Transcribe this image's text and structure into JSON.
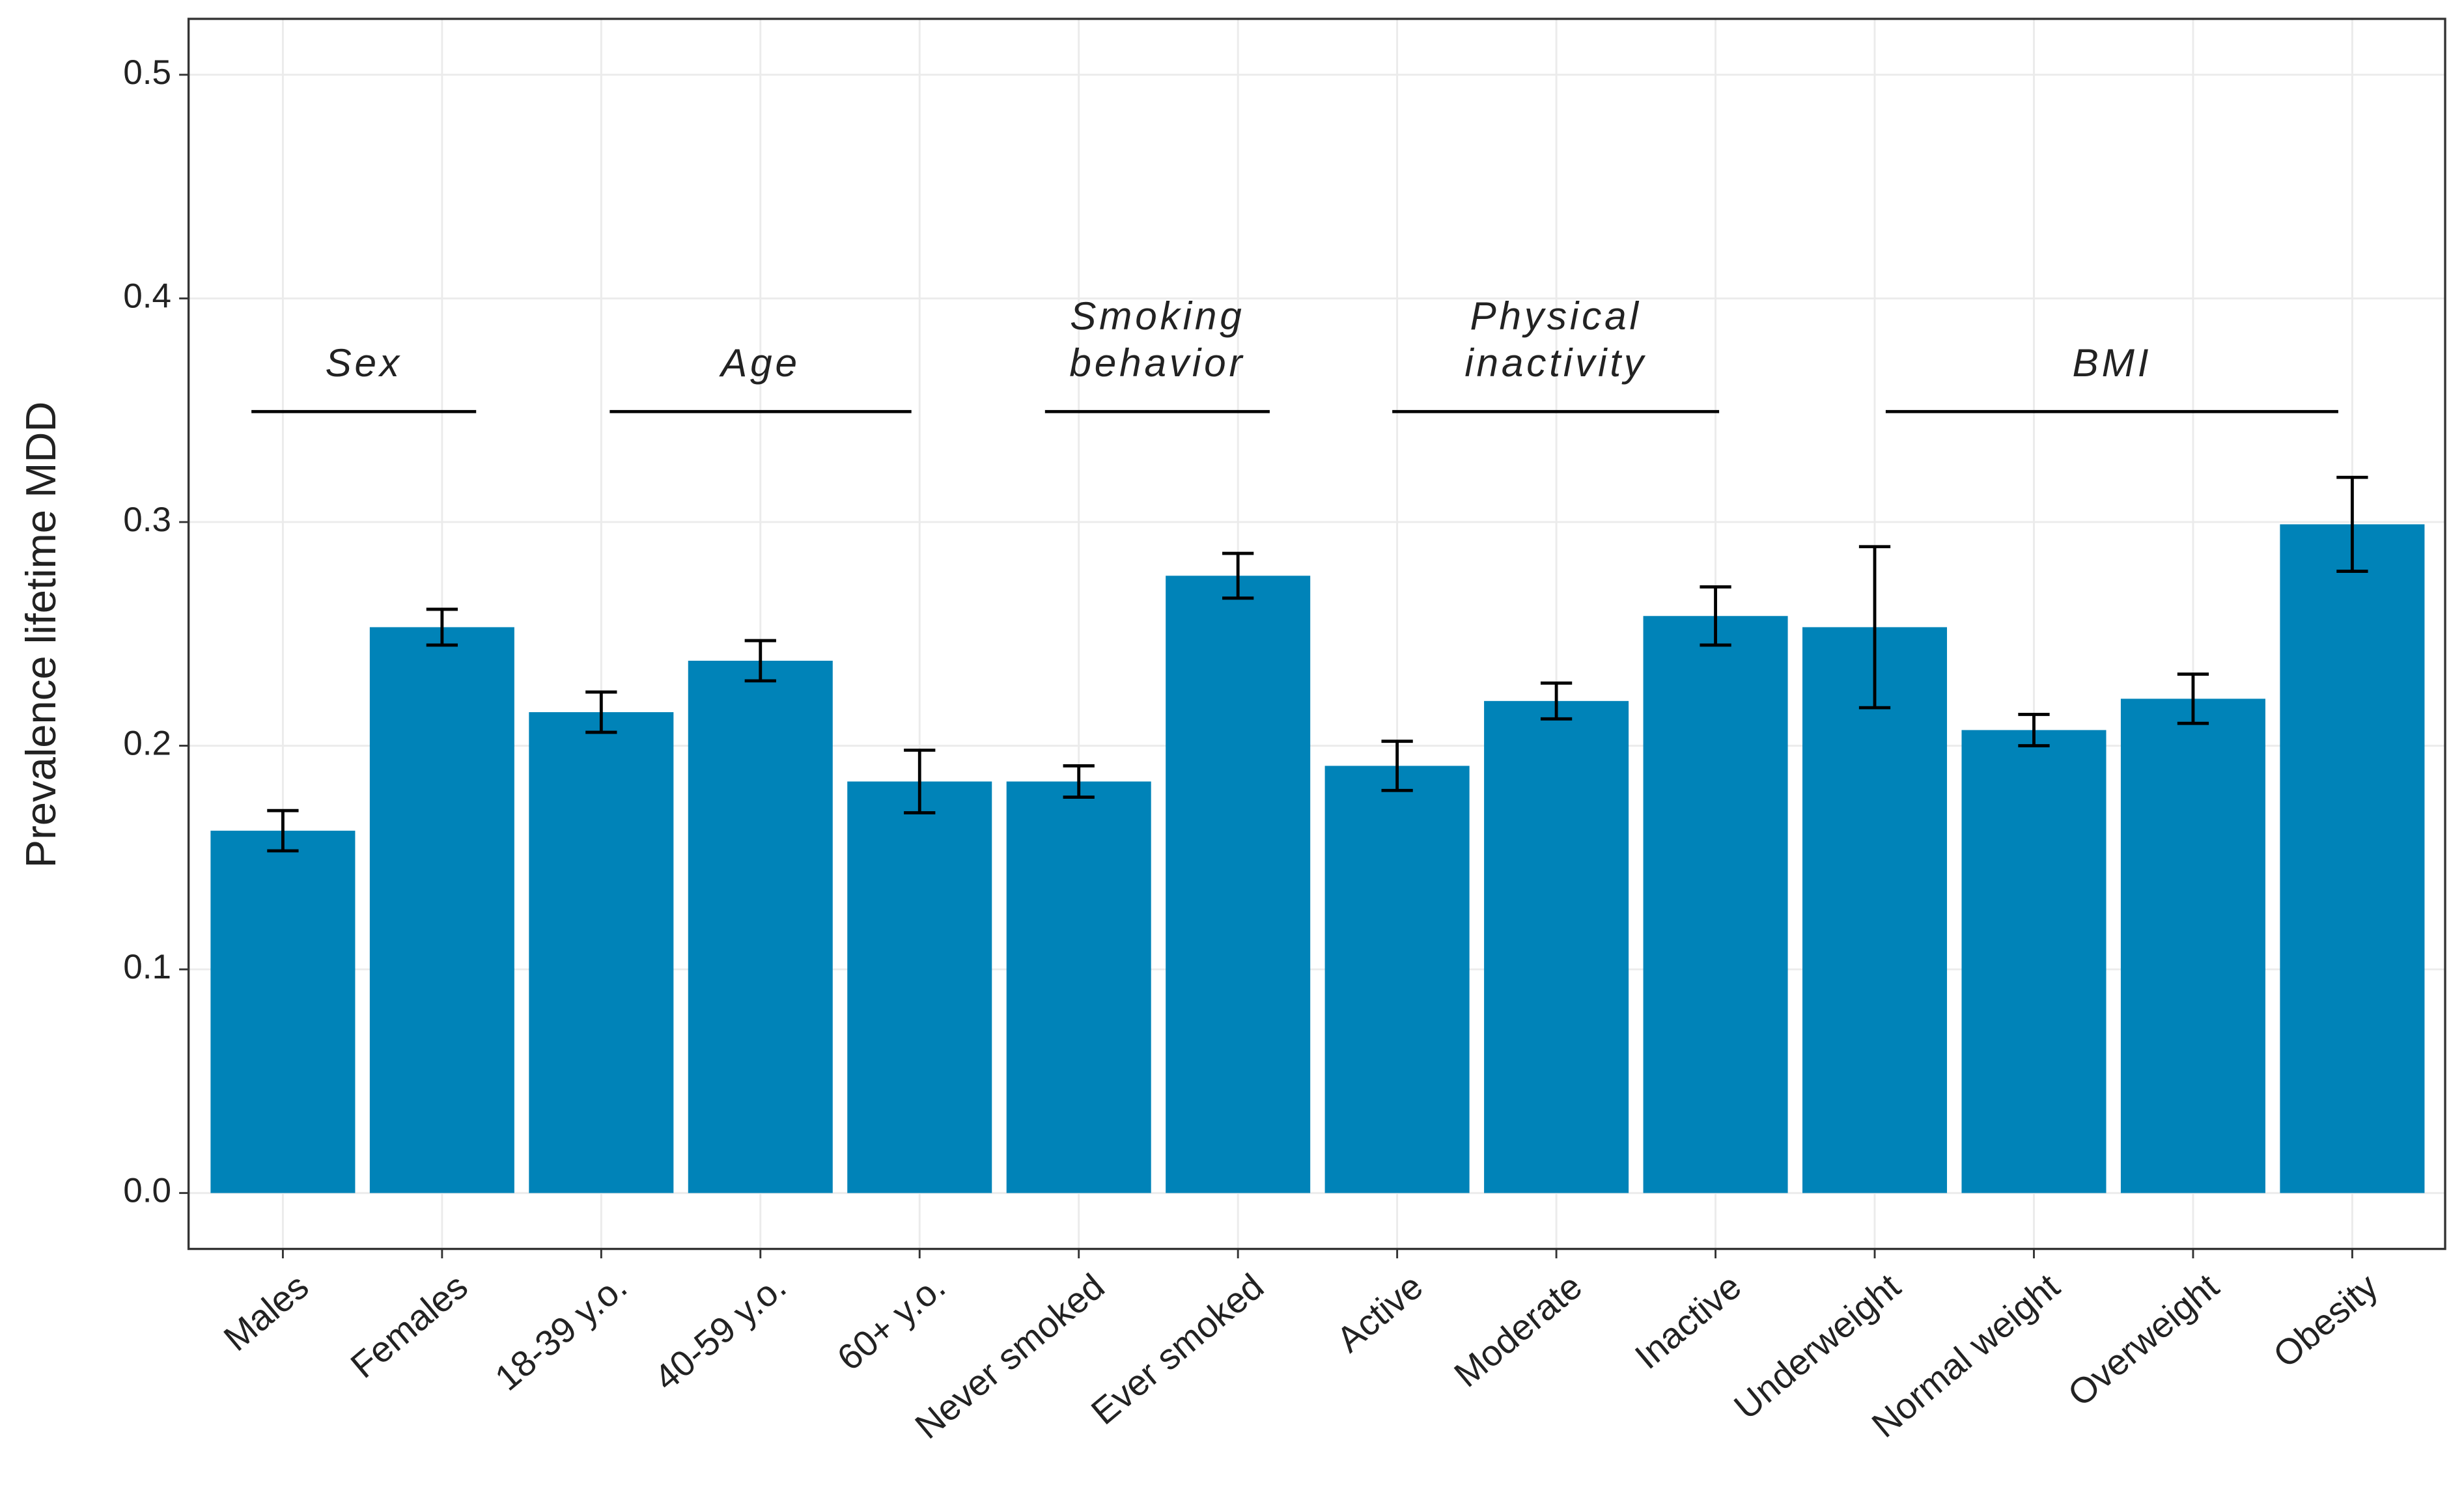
{
  "chart_data": {
    "type": "bar",
    "y_label": "Prevalence lifetime MDD",
    "categories": [
      "Males",
      "Females",
      "18-39 y.o.",
      "40-59 y.o.",
      "60+ y.o.",
      "Never smoked",
      "Ever smoked",
      "Active",
      "Moderate",
      "Inactive",
      "Underweight",
      "Normal weight",
      "Overweight",
      "Obesity"
    ],
    "values": [
      0.162,
      0.253,
      0.215,
      0.238,
      0.184,
      0.184,
      0.276,
      0.191,
      0.22,
      0.258,
      0.253,
      0.207,
      0.221,
      0.299
    ],
    "errors": [
      0.009,
      0.008,
      0.009,
      0.009,
      0.014,
      0.007,
      0.01,
      0.011,
      0.008,
      0.013,
      0.036,
      0.007,
      0.011,
      0.021
    ],
    "color": "#0083b8",
    "ylim": [
      -0.025,
      0.525
    ],
    "yticks": [
      {
        "value": 0,
        "label": "0.0"
      },
      0.1,
      0.2,
      0.3,
      0.4,
      0.5
    ],
    "grid": true,
    "annotations": [
      [
        "Sex"
      ],
      [
        "Age"
      ],
      [
        "Smoking",
        "behavior"
      ],
      [
        "Physical",
        "inactivity"
      ],
      [
        "BMI"
      ]
    ]
  }
}
